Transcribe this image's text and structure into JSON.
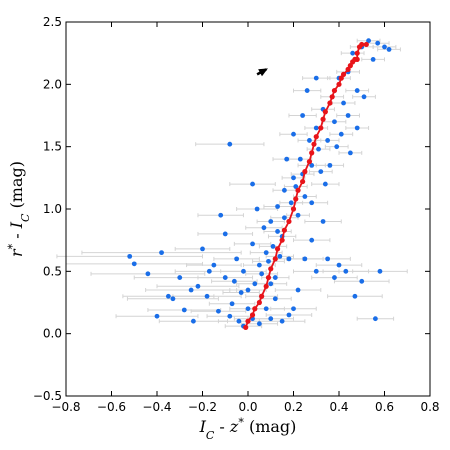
{
  "chart_data": {
    "type": "scatter",
    "title": "",
    "xlabel": {
      "parts": [
        {
          "t": "I",
          "i": true
        },
        {
          "t": "C",
          "sub": true,
          "i": true
        },
        {
          "t": "  -  "
        },
        {
          "t": "z",
          "i": true
        },
        {
          "t": "*",
          "sup": true
        },
        {
          "t": " (mag)"
        }
      ]
    },
    "ylabel": {
      "parts": [
        {
          "t": "r",
          "i": true
        },
        {
          "t": "*",
          "sup": true
        },
        {
          "t": "  -  "
        },
        {
          "t": "I",
          "i": true
        },
        {
          "t": "C",
          "sub": true,
          "i": true
        },
        {
          "t": " (mag)"
        }
      ]
    },
    "xlim": [
      -0.8,
      0.8
    ],
    "ylim": [
      -0.5,
      2.5
    ],
    "xticks": [
      -0.8,
      -0.6,
      -0.4,
      -0.2,
      0.0,
      0.2,
      0.4,
      0.6,
      0.8
    ],
    "xtick_labels": [
      "−0.8",
      "−0.6",
      "−0.4",
      "−0.2",
      "0.0",
      "0.2",
      "0.4",
      "0.6",
      "0.8"
    ],
    "yticks": [
      -0.5,
      0.0,
      0.5,
      1.0,
      1.5,
      2.0,
      2.5
    ],
    "ytick_labels": [
      "−0.5",
      "0.0",
      "0.5",
      "1.0",
      "1.5",
      "2.0",
      "2.5"
    ],
    "grid": false,
    "colors": {
      "points": "#1a6ee8",
      "locus": "#e8141a",
      "errorbars": "#d4d4d4",
      "arrow": "#000000"
    },
    "series": [
      {
        "kind": "points-with-xerrors",
        "points": [
          {
            "x": -0.38,
            "y": 0.65,
            "xerr": 0.35
          },
          {
            "x": -0.52,
            "y": 0.62,
            "xerr": 0.32
          },
          {
            "x": -0.5,
            "y": 0.56,
            "xerr": 0.3
          },
          {
            "x": -0.35,
            "y": 0.3,
            "xerr": 0.2
          },
          {
            "x": -0.4,
            "y": 0.14,
            "xerr": 0.18
          },
          {
            "x": -0.33,
            "y": 0.28,
            "xerr": 0.2
          },
          {
            "x": -0.28,
            "y": 0.19,
            "xerr": 0.16
          },
          {
            "x": -0.25,
            "y": 0.35,
            "xerr": 0.2
          },
          {
            "x": -0.22,
            "y": 0.38,
            "xerr": 0.18
          },
          {
            "x": -0.2,
            "y": 0.68,
            "xerr": 0.12
          },
          {
            "x": -0.17,
            "y": 0.5,
            "xerr": 0.15
          },
          {
            "x": -0.15,
            "y": 0.55,
            "xerr": 0.12
          },
          {
            "x": -0.12,
            "y": 0.95,
            "xerr": 0.1
          },
          {
            "x": -0.08,
            "y": 1.52,
            "xerr": 0.15
          },
          {
            "x": -0.1,
            "y": 0.8,
            "xerr": 0.12
          },
          {
            "x": -0.18,
            "y": 0.3,
            "xerr": 0.15
          },
          {
            "x": -0.1,
            "y": 0.45,
            "xerr": 0.12
          },
          {
            "x": -0.06,
            "y": 0.42,
            "xerr": 0.1
          },
          {
            "x": -0.05,
            "y": 0.6,
            "xerr": 0.1
          },
          {
            "x": -0.07,
            "y": 0.24,
            "xerr": 0.1
          },
          {
            "x": -0.03,
            "y": 0.33,
            "xerr": 0.08
          },
          {
            "x": -0.02,
            "y": 0.5,
            "xerr": 0.1
          },
          {
            "x": 0.0,
            "y": 0.2,
            "xerr": 0.08
          },
          {
            "x": 0.02,
            "y": 0.72,
            "xerr": 0.08
          },
          {
            "x": 0.03,
            "y": 0.4,
            "xerr": 0.08
          },
          {
            "x": 0.05,
            "y": 0.55,
            "xerr": 0.07
          },
          {
            "x": 0.06,
            "y": 0.3,
            "xerr": 0.07
          },
          {
            "x": 0.08,
            "y": 0.65,
            "xerr": 0.07
          },
          {
            "x": 0.1,
            "y": 0.9,
            "xerr": 0.06
          },
          {
            "x": 0.12,
            "y": 0.45,
            "xerr": 0.06
          },
          {
            "x": 0.13,
            "y": 1.02,
            "xerr": 0.06
          },
          {
            "x": 0.15,
            "y": 0.78,
            "xerr": 0.06
          },
          {
            "x": 0.16,
            "y": 1.15,
            "xerr": 0.05
          },
          {
            "x": 0.18,
            "y": 0.6,
            "xerr": 0.06
          },
          {
            "x": 0.2,
            "y": 1.25,
            "xerr": 0.05
          },
          {
            "x": 0.22,
            "y": 0.95,
            "xerr": 0.05
          },
          {
            "x": 0.23,
            "y": 1.4,
            "xerr": 0.05
          },
          {
            "x": 0.25,
            "y": 1.1,
            "xerr": 0.05
          },
          {
            "x": 0.27,
            "y": 1.55,
            "xerr": 0.05
          },
          {
            "x": 0.28,
            "y": 0.75,
            "xerr": 0.08
          },
          {
            "x": 0.3,
            "y": 1.65,
            "xerr": 0.05
          },
          {
            "x": 0.32,
            "y": 1.3,
            "xerr": 0.05
          },
          {
            "x": 0.33,
            "y": 1.8,
            "xerr": 0.05
          },
          {
            "x": 0.35,
            "y": 1.55,
            "xerr": 0.05
          },
          {
            "x": 0.37,
            "y": 1.9,
            "xerr": 0.05
          },
          {
            "x": 0.38,
            "y": 1.7,
            "xerr": 0.05
          },
          {
            "x": 0.4,
            "y": 2.05,
            "xerr": 0.05
          },
          {
            "x": 0.42,
            "y": 1.85,
            "xerr": 0.05
          },
          {
            "x": 0.44,
            "y": 2.1,
            "xerr": 0.05
          },
          {
            "x": 0.46,
            "y": 2.25,
            "xerr": 0.05
          },
          {
            "x": 0.48,
            "y": 1.95,
            "xerr": 0.05
          },
          {
            "x": 0.5,
            "y": 2.3,
            "xerr": 0.05
          },
          {
            "x": 0.53,
            "y": 2.35,
            "xerr": 0.05
          },
          {
            "x": 0.55,
            "y": 2.2,
            "xerr": 0.05
          },
          {
            "x": 0.57,
            "y": 2.33,
            "xerr": 0.05
          },
          {
            "x": 0.6,
            "y": 2.3,
            "xerr": 0.05
          },
          {
            "x": 0.62,
            "y": 2.28,
            "xerr": 0.05
          },
          {
            "x": 0.56,
            "y": 0.12,
            "xerr": 0.08
          },
          {
            "x": 0.58,
            "y": 0.5,
            "xerr": 0.12
          },
          {
            "x": 0.5,
            "y": 0.42,
            "xerr": 0.12
          },
          {
            "x": 0.47,
            "y": 0.3,
            "xerr": 0.12
          },
          {
            "x": 0.43,
            "y": 0.5,
            "xerr": 0.1
          },
          {
            "x": 0.4,
            "y": 0.55,
            "xerr": 0.1
          },
          {
            "x": 0.38,
            "y": 0.45,
            "xerr": 0.1
          },
          {
            "x": 0.35,
            "y": 0.6,
            "xerr": 0.1
          },
          {
            "x": 0.33,
            "y": 0.9,
            "xerr": 0.08
          },
          {
            "x": 0.3,
            "y": 0.5,
            "xerr": 0.1
          },
          {
            "x": 0.28,
            "y": 1.05,
            "xerr": 0.07
          },
          {
            "x": 0.25,
            "y": 0.6,
            "xerr": 0.08
          },
          {
            "x": 0.22,
            "y": 0.35,
            "xerr": 0.1
          },
          {
            "x": 0.2,
            "y": 0.2,
            "xerr": 0.1
          },
          {
            "x": 0.18,
            "y": 0.15,
            "xerr": 0.1
          },
          {
            "x": 0.15,
            "y": 0.1,
            "xerr": 0.1
          },
          {
            "x": 0.1,
            "y": 0.12,
            "xerr": 0.1
          },
          {
            "x": 0.08,
            "y": 0.2,
            "xerr": 0.08
          },
          {
            "x": 0.05,
            "y": 0.08,
            "xerr": 0.08
          },
          {
            "x": 0.02,
            "y": 0.12,
            "xerr": 0.08
          },
          {
            "x": -0.02,
            "y": 0.06,
            "xerr": 0.08
          },
          {
            "x": 0.12,
            "y": 0.28,
            "xerr": 0.07
          },
          {
            "x": 0.14,
            "y": 0.62,
            "xerr": 0.06
          },
          {
            "x": 0.1,
            "y": 0.4,
            "xerr": 0.07
          },
          {
            "x": 0.07,
            "y": 0.85,
            "xerr": 0.08
          },
          {
            "x": 0.04,
            "y": 1.0,
            "xerr": 0.09
          },
          {
            "x": 0.02,
            "y": 1.2,
            "xerr": 0.1
          },
          {
            "x": 0.17,
            "y": 1.4,
            "xerr": 0.06
          },
          {
            "x": 0.2,
            "y": 1.6,
            "xerr": 0.06
          },
          {
            "x": 0.24,
            "y": 1.75,
            "xerr": 0.06
          },
          {
            "x": 0.26,
            "y": 1.95,
            "xerr": 0.06
          },
          {
            "x": 0.3,
            "y": 2.05,
            "xerr": 0.06
          },
          {
            "x": 0.28,
            "y": 1.35,
            "xerr": 0.06
          },
          {
            "x": 0.31,
            "y": 1.48,
            "xerr": 0.05
          },
          {
            "x": 0.34,
            "y": 1.2,
            "xerr": 0.06
          },
          {
            "x": 0.36,
            "y": 1.35,
            "xerr": 0.06
          },
          {
            "x": 0.39,
            "y": 1.5,
            "xerr": 0.05
          },
          {
            "x": 0.41,
            "y": 1.6,
            "xerr": 0.05
          },
          {
            "x": 0.44,
            "y": 1.75,
            "xerr": 0.05
          },
          {
            "x": 0.45,
            "y": 1.45,
            "xerr": 0.05
          },
          {
            "x": 0.48,
            "y": 1.65,
            "xerr": 0.05
          },
          {
            "x": 0.51,
            "y": 1.9,
            "xerr": 0.05
          },
          {
            "x": 0.0,
            "y": 0.35,
            "xerr": 0.08
          },
          {
            "x": 0.06,
            "y": 0.48,
            "xerr": 0.07
          },
          {
            "x": 0.09,
            "y": 0.58,
            "xerr": 0.07
          },
          {
            "x": 0.11,
            "y": 0.7,
            "xerr": 0.06
          },
          {
            "x": 0.13,
            "y": 0.82,
            "xerr": 0.06
          },
          {
            "x": 0.16,
            "y": 0.93,
            "xerr": 0.06
          },
          {
            "x": 0.19,
            "y": 1.05,
            "xerr": 0.05
          },
          {
            "x": 0.21,
            "y": 1.18,
            "xerr": 0.05
          },
          {
            "x": 0.24,
            "y": 1.28,
            "xerr": 0.05
          },
          {
            "x": -0.13,
            "y": 0.18,
            "xerr": 0.12
          },
          {
            "x": -0.08,
            "y": 0.14,
            "xerr": 0.1
          },
          {
            "x": -0.04,
            "y": 0.1,
            "xerr": 0.09
          },
          {
            "x": -0.24,
            "y": 0.1,
            "xerr": 0.15
          },
          {
            "x": -0.3,
            "y": 0.45,
            "xerr": 0.2
          },
          {
            "x": -0.44,
            "y": 0.48,
            "xerr": 0.25
          }
        ]
      },
      {
        "kind": "locus-line",
        "x": [
          -0.01,
          0.0,
          0.02,
          0.03,
          0.05,
          0.06,
          0.08,
          0.09,
          0.1,
          0.12,
          0.13,
          0.15,
          0.16,
          0.18,
          0.2,
          0.21,
          0.22,
          0.24,
          0.25,
          0.27,
          0.28,
          0.29,
          0.3,
          0.32,
          0.33,
          0.34,
          0.36,
          0.37,
          0.38,
          0.4,
          0.41,
          0.42,
          0.44,
          0.45,
          0.46,
          0.47,
          0.48,
          0.48,
          0.49,
          0.5,
          0.52
        ],
        "y": [
          0.05,
          0.1,
          0.15,
          0.2,
          0.25,
          0.3,
          0.38,
          0.45,
          0.52,
          0.6,
          0.68,
          0.75,
          0.83,
          0.9,
          1.0,
          1.08,
          1.15,
          1.22,
          1.3,
          1.38,
          1.45,
          1.52,
          1.58,
          1.65,
          1.72,
          1.78,
          1.85,
          1.9,
          1.95,
          2.0,
          2.05,
          2.08,
          2.12,
          2.15,
          2.18,
          2.2,
          2.2,
          2.25,
          2.3,
          2.32,
          2.32
        ]
      }
    ],
    "annotation": {
      "kind": "arrow",
      "from": {
        "x": 0.04,
        "y": 2.08
      },
      "to": {
        "x": 0.08,
        "y": 2.12
      }
    }
  }
}
